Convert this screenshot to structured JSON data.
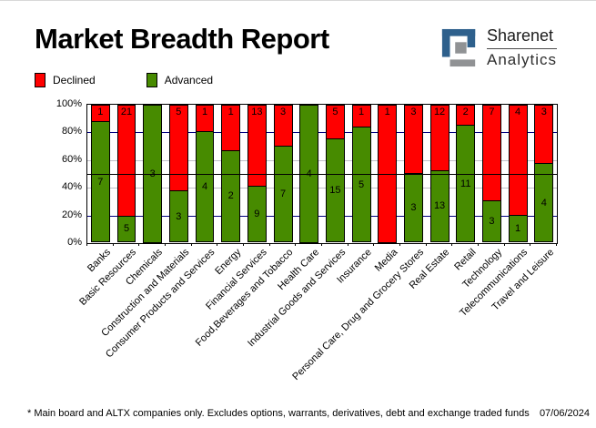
{
  "header": {
    "title": "Market Breadth Report",
    "logo": {
      "line1": "Sharenet",
      "line2": "Analytics"
    }
  },
  "legend": {
    "declined": "Declined",
    "advanced": "Advanced"
  },
  "footer": {
    "note": "* Main board and ALTX companies only. Excludes options, warrants, derivatives, debt and exchange traded funds",
    "date": "07/06/2024"
  },
  "colors": {
    "declined": "#FF0000",
    "advanced": "#478B00",
    "grid_major": "#000080",
    "grid_minor": "#C0C0C8",
    "mid_line": "#000000",
    "logo_blue": "#2E608C",
    "logo_gray": "#909294"
  },
  "chart_data": {
    "type": "bar",
    "variant": "100%-stacked-column",
    "title": "Market Breadth Report",
    "categories": [
      "Banks",
      "Basic Resources",
      "Chemicals",
      "Construction and Materials",
      "Consumer Products and Services",
      "Energy",
      "Financial Services",
      "Food,Beverages and Tobacco",
      "Health Care",
      "Industrial Goods and Services",
      "Insurance",
      "Media",
      "Personal Care, Drug and Grocery Stores",
      "Real Estate",
      "Retail",
      "Technology",
      "Telecommunications",
      "Travel and Leisure"
    ],
    "series": [
      {
        "name": "Advanced",
        "color": "#478B00",
        "values": [
          7,
          5,
          3,
          3,
          4,
          2,
          9,
          7,
          4,
          15,
          5,
          0,
          3,
          13,
          11,
          3,
          1,
          4
        ]
      },
      {
        "name": "Declined",
        "color": "#FF0000",
        "values": [
          1,
          21,
          0,
          5,
          1,
          1,
          13,
          3,
          0,
          5,
          1,
          1,
          3,
          12,
          2,
          7,
          4,
          3
        ]
      }
    ],
    "ylabel": "",
    "xlabel": "",
    "ylim": [
      0,
      100
    ],
    "y_ticks": [
      "100%",
      "80%",
      "60%",
      "40%",
      "20%",
      "0%"
    ],
    "gridlines": {
      "navy_at": [
        80,
        20
      ],
      "gray_at": [
        60,
        40
      ],
      "black_at": [
        50
      ]
    },
    "legend_position": "top-left",
    "bar_labels": "counts shown inside segments; red count at top of declined segment, green count centered in advanced segment"
  }
}
